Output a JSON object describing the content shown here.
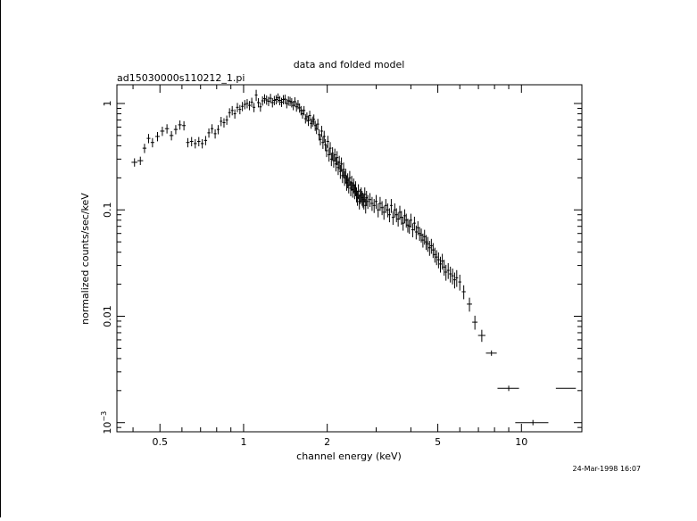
{
  "chart_data": {
    "type": "scatter",
    "title": "data and folded model",
    "subtitle": "ad15030000s110212_1.pi",
    "xlabel": "channel energy (keV)",
    "ylabel": "normalized counts/sec/keV",
    "timestamp": "24-Mar-1998 16:07",
    "xscale": "log",
    "yscale": "log",
    "xlim": [
      0.35,
      16.5
    ],
    "ylim": [
      0.00082,
      1.5
    ],
    "x_ticks": [
      {
        "value": 0.5,
        "label": "0.5"
      },
      {
        "value": 1,
        "label": "1"
      },
      {
        "value": 2,
        "label": "2"
      },
      {
        "value": 5,
        "label": "5"
      },
      {
        "value": 10,
        "label": "10"
      }
    ],
    "y_ticks": [
      {
        "value": 1,
        "label": "1"
      },
      {
        "value": 0.1,
        "label": "0.1"
      },
      {
        "value": 0.01,
        "label": "0.01"
      },
      {
        "value": 0.001,
        "label": "10",
        "sup": "−3"
      }
    ],
    "series": [
      {
        "style": "crosses",
        "x": [
          0.405,
          0.425,
          0.44,
          0.455,
          0.47,
          0.49,
          0.51,
          0.53,
          0.55,
          0.57,
          0.59,
          0.61,
          0.63,
          0.65,
          0.67,
          0.69,
          0.71,
          0.73,
          0.75,
          0.77,
          0.79,
          0.81,
          0.83,
          0.85,
          0.87,
          0.89,
          0.91,
          0.93,
          0.95,
          0.97,
          0.99,
          1.01,
          1.03,
          1.05,
          1.07,
          1.09,
          1.11,
          1.13,
          1.15,
          1.17,
          1.19,
          1.21,
          1.23,
          1.25,
          1.27,
          1.29,
          1.31,
          1.33,
          1.35,
          1.37,
          1.39,
          1.41,
          1.43,
          1.45,
          1.47,
          1.49,
          1.51,
          1.53,
          1.55,
          1.57,
          1.59,
          1.61,
          1.63,
          1.65,
          1.67,
          1.69,
          1.71,
          1.73,
          1.75,
          1.77,
          1.79,
          1.81,
          1.83,
          1.85,
          1.87,
          1.89,
          1.91,
          1.93,
          1.95,
          1.97,
          1.99,
          2.01,
          2.03,
          2.05,
          2.07,
          2.09,
          2.11,
          2.13,
          2.15,
          2.17,
          2.19,
          2.21,
          2.23,
          2.25,
          2.27,
          2.29,
          2.31,
          2.33,
          2.35,
          2.37,
          2.39,
          2.41,
          2.43,
          2.45,
          2.47,
          2.49,
          2.51,
          2.53,
          2.55,
          2.57,
          2.59,
          2.61,
          2.63,
          2.65,
          2.67,
          2.69,
          2.71,
          2.73,
          2.75,
          2.77,
          2.8,
          2.85,
          2.9,
          2.95,
          3.0,
          3.05,
          3.1,
          3.15,
          3.2,
          3.25,
          3.3,
          3.35,
          3.4,
          3.45,
          3.5,
          3.55,
          3.6,
          3.65,
          3.7,
          3.75,
          3.8,
          3.85,
          3.9,
          3.95,
          4.0,
          4.06,
          4.12,
          4.18,
          4.24,
          4.3,
          4.36,
          4.42,
          4.48,
          4.54,
          4.6,
          4.67,
          4.74,
          4.81,
          4.88,
          4.95,
          5.03,
          5.11,
          5.19,
          5.27,
          5.35,
          5.45,
          5.55,
          5.65,
          5.75,
          5.85,
          6.0,
          6.2,
          6.5,
          6.8,
          7.2,
          7.8,
          9.0,
          11.0,
          14.5
        ],
        "y": [
          0.28,
          0.29,
          0.38,
          0.47,
          0.43,
          0.49,
          0.55,
          0.58,
          0.5,
          0.57,
          0.63,
          0.62,
          0.43,
          0.44,
          0.42,
          0.44,
          0.42,
          0.45,
          0.53,
          0.58,
          0.52,
          0.57,
          0.68,
          0.66,
          0.7,
          0.82,
          0.86,
          0.8,
          0.92,
          0.88,
          0.94,
          0.98,
          1.0,
          0.96,
          1.03,
          0.92,
          1.2,
          1.02,
          0.93,
          1.06,
          1.11,
          1.08,
          1.05,
          1.12,
          1.02,
          1.07,
          1.09,
          1.13,
          1.07,
          1.03,
          1.09,
          1.1,
          1.0,
          1.06,
          1.05,
          1.02,
          0.96,
          1.04,
          0.93,
          0.98,
          0.91,
          0.86,
          0.8,
          0.86,
          0.72,
          0.75,
          0.69,
          0.77,
          0.65,
          0.68,
          0.71,
          0.62,
          0.58,
          0.64,
          0.51,
          0.46,
          0.55,
          0.43,
          0.49,
          0.41,
          0.36,
          0.44,
          0.33,
          0.38,
          0.3,
          0.34,
          0.29,
          0.33,
          0.27,
          0.31,
          0.25,
          0.28,
          0.23,
          0.27,
          0.21,
          0.24,
          0.2,
          0.21,
          0.18,
          0.19,
          0.17,
          0.2,
          0.16,
          0.18,
          0.155,
          0.17,
          0.15,
          0.16,
          0.14,
          0.13,
          0.15,
          0.12,
          0.135,
          0.14,
          0.13,
          0.125,
          0.12,
          0.14,
          0.11,
          0.13,
          0.12,
          0.125,
          0.115,
          0.11,
          0.12,
          0.1,
          0.115,
          0.105,
          0.095,
          0.11,
          0.1,
          0.09,
          0.11,
          0.085,
          0.1,
          0.09,
          0.082,
          0.095,
          0.085,
          0.075,
          0.088,
          0.08,
          0.072,
          0.07,
          0.08,
          0.065,
          0.075,
          0.062,
          0.068,
          0.06,
          0.058,
          0.052,
          0.056,
          0.05,
          0.048,
          0.044,
          0.046,
          0.042,
          0.038,
          0.036,
          0.034,
          0.031,
          0.033,
          0.029,
          0.026,
          0.027,
          0.025,
          0.024,
          0.022,
          0.023,
          0.021,
          0.017,
          0.013,
          0.0088,
          0.0066,
          0.0045,
          0.0021,
          0.001,
          0.0021
        ],
        "xerr": [
          0.01,
          0.01,
          0.007,
          0.007,
          0.007,
          0.009,
          0.009,
          0.009,
          0.009,
          0.009,
          0.009,
          0.009,
          0.009,
          0.009,
          0.009,
          0.009,
          0.009,
          0.009,
          0.009,
          0.009,
          0.009,
          0.009,
          0.009,
          0.009,
          0.009,
          0.009,
          0.009,
          0.009,
          0.009,
          0.009,
          0.009,
          0.009,
          0.009,
          0.009,
          0.009,
          0.009,
          0.009,
          0.009,
          0.009,
          0.009,
          0.009,
          0.009,
          0.009,
          0.009,
          0.009,
          0.009,
          0.009,
          0.009,
          0.009,
          0.009,
          0.009,
          0.009,
          0.009,
          0.009,
          0.009,
          0.009,
          0.009,
          0.009,
          0.009,
          0.009,
          0.009,
          0.009,
          0.009,
          0.009,
          0.009,
          0.009,
          0.009,
          0.009,
          0.009,
          0.009,
          0.009,
          0.009,
          0.009,
          0.009,
          0.009,
          0.009,
          0.009,
          0.009,
          0.009,
          0.009,
          0.009,
          0.009,
          0.009,
          0.009,
          0.009,
          0.009,
          0.009,
          0.009,
          0.009,
          0.009,
          0.009,
          0.009,
          0.009,
          0.009,
          0.009,
          0.009,
          0.009,
          0.009,
          0.009,
          0.009,
          0.009,
          0.009,
          0.009,
          0.009,
          0.009,
          0.009,
          0.009,
          0.009,
          0.009,
          0.009,
          0.009,
          0.009,
          0.009,
          0.009,
          0.009,
          0.009,
          0.009,
          0.009,
          0.009,
          0.009,
          0.015,
          0.022,
          0.022,
          0.022,
          0.022,
          0.022,
          0.022,
          0.022,
          0.022,
          0.022,
          0.022,
          0.022,
          0.022,
          0.022,
          0.022,
          0.022,
          0.022,
          0.022,
          0.022,
          0.022,
          0.022,
          0.022,
          0.022,
          0.022,
          0.022,
          0.028,
          0.028,
          0.028,
          0.028,
          0.028,
          0.028,
          0.028,
          0.028,
          0.028,
          0.028,
          0.033,
          0.033,
          0.033,
          0.033,
          0.033,
          0.036,
          0.038,
          0.038,
          0.038,
          0.038,
          0.048,
          0.048,
          0.048,
          0.048,
          0.048,
          0.075,
          0.1,
          0.14,
          0.15,
          0.22,
          0.35,
          0.8,
          1.5,
          1.2
        ],
        "yerr_frac": [
          0.09,
          0.09,
          0.1,
          0.1,
          0.1,
          0.1,
          0.1,
          0.1,
          0.1,
          0.1,
          0.1,
          0.1,
          0.1,
          0.1,
          0.1,
          0.1,
          0.1,
          0.1,
          0.1,
          0.1,
          0.1,
          0.1,
          0.1,
          0.1,
          0.1,
          0.1,
          0.1,
          0.1,
          0.1,
          0.1,
          0.1,
          0.1,
          0.1,
          0.1,
          0.1,
          0.1,
          0.12,
          0.1,
          0.1,
          0.1,
          0.1,
          0.1,
          0.1,
          0.1,
          0.1,
          0.1,
          0.1,
          0.1,
          0.1,
          0.1,
          0.1,
          0.1,
          0.1,
          0.1,
          0.1,
          0.1,
          0.1,
          0.1,
          0.1,
          0.1,
          0.1,
          0.1,
          0.1,
          0.1,
          0.1,
          0.1,
          0.11,
          0.11,
          0.11,
          0.11,
          0.11,
          0.11,
          0.11,
          0.12,
          0.12,
          0.12,
          0.12,
          0.13,
          0.13,
          0.13,
          0.13,
          0.13,
          0.14,
          0.14,
          0.14,
          0.14,
          0.14,
          0.14,
          0.15,
          0.15,
          0.15,
          0.15,
          0.15,
          0.15,
          0.15,
          0.16,
          0.16,
          0.16,
          0.16,
          0.16,
          0.16,
          0.16,
          0.16,
          0.16,
          0.16,
          0.16,
          0.16,
          0.16,
          0.16,
          0.16,
          0.16,
          0.16,
          0.16,
          0.16,
          0.16,
          0.16,
          0.16,
          0.16,
          0.16,
          0.16,
          0.15,
          0.15,
          0.15,
          0.15,
          0.15,
          0.15,
          0.15,
          0.15,
          0.15,
          0.15,
          0.15,
          0.15,
          0.15,
          0.15,
          0.15,
          0.15,
          0.15,
          0.15,
          0.15,
          0.15,
          0.15,
          0.15,
          0.15,
          0.15,
          0.15,
          0.15,
          0.15,
          0.15,
          0.15,
          0.15,
          0.15,
          0.15,
          0.16,
          0.16,
          0.16,
          0.16,
          0.16,
          0.16,
          0.16,
          0.16,
          0.17,
          0.17,
          0.17,
          0.17,
          0.17,
          0.17,
          0.17,
          0.17,
          0.17,
          0.18,
          0.17,
          0.15,
          0.15,
          0.15,
          0.13,
          0.01,
          0.01,
          0.01
        ]
      }
    ],
    "grid": false,
    "legend": "none"
  }
}
